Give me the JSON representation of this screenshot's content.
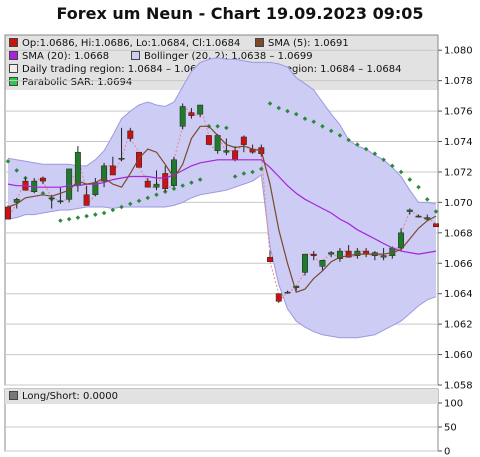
{
  "title": "Forex um Neun - Chart 19.09.2023 09:05",
  "legend": {
    "ohlc": "Op:1.0686, Hi:1.0686, Lo:1.0684, Cl:1.0684",
    "sma5": "SMA (5): 1.0691",
    "sma20": "SMA (20): 1.0668",
    "bollinger": "Bollinger (20, 2): 1.0638 – 1.0699",
    "daily_region": "Daily trading region: 1.0684 – 1.0684",
    "sl_region": "Daily S/L region: 1.0684 – 1.0684",
    "psar": "Parabolic SAR: 1.0694",
    "long_short": "Long/Short: 0.0000"
  },
  "colors": {
    "up_candle": "#1f7a2b",
    "down_candle": "#cc1111",
    "sma5": "#7a4a2a",
    "sma20": "#aa22dd",
    "bollinger_fill": "#ccccf5",
    "bollinger_edge": "#9a9ae0",
    "psar": "#2a8a3a",
    "sl_swatch": "#dd1111",
    "legend_bg": "#e2e2e2",
    "grid": "#c8c8c8"
  },
  "chart_data": [
    {
      "type": "candlestick",
      "ylim": [
        1.058,
        1.081
      ],
      "yticks": [
        "1.058",
        "1.060",
        "1.062",
        "1.064",
        "1.066",
        "1.068",
        "1.070",
        "1.072",
        "1.074",
        "1.076",
        "1.078",
        "1.080"
      ],
      "grid": true,
      "candles": [
        {
          "o": 1.0697,
          "h": 1.0698,
          "l": 1.069,
          "c": 1.0689
        },
        {
          "o": 1.07,
          "h": 1.0703,
          "l": 1.0696,
          "c": 1.0702
        },
        {
          "o": 1.0714,
          "h": 1.0716,
          "l": 1.0708,
          "c": 1.0708
        },
        {
          "o": 1.0707,
          "h": 1.0716,
          "l": 1.0706,
          "c": 1.0714
        },
        {
          "o": 1.0716,
          "h": 1.0717,
          "l": 1.0712,
          "c": 1.0714
        },
        {
          "o": 1.0703,
          "h": 1.0705,
          "l": 1.0696,
          "c": 1.0703
        },
        {
          "o": 1.0701,
          "h": 1.071,
          "l": 1.0699,
          "c": 1.0701
        },
        {
          "o": 1.0702,
          "h": 1.0722,
          "l": 1.07,
          "c": 1.0722
        },
        {
          "o": 1.0711,
          "h": 1.0737,
          "l": 1.0707,
          "c": 1.0733
        },
        {
          "o": 1.0705,
          "h": 1.0711,
          "l": 1.0698,
          "c": 1.0698
        },
        {
          "o": 1.0705,
          "h": 1.0716,
          "l": 1.0704,
          "c": 1.0713
        },
        {
          "o": 1.0714,
          "h": 1.0726,
          "l": 1.071,
          "c": 1.0724
        },
        {
          "o": 1.0724,
          "h": 1.073,
          "l": 1.0718,
          "c": 1.0718
        },
        {
          "o": 1.0729,
          "h": 1.0749,
          "l": 1.0727,
          "c": 1.0729
        },
        {
          "o": 1.0747,
          "h": 1.0749,
          "l": 1.074,
          "c": 1.0742
        },
        {
          "o": 1.0733,
          "h": 1.0733,
          "l": 1.0723,
          "c": 1.0723
        },
        {
          "o": 1.0714,
          "h": 1.0716,
          "l": 1.071,
          "c": 1.071
        },
        {
          "o": 1.071,
          "h": 1.0721,
          "l": 1.0708,
          "c": 1.0712
        },
        {
          "o": 1.0719,
          "h": 1.0724,
          "l": 1.0707,
          "c": 1.0709
        },
        {
          "o": 1.0711,
          "h": 1.073,
          "l": 1.071,
          "c": 1.0728
        },
        {
          "o": 1.075,
          "h": 1.0765,
          "l": 1.0748,
          "c": 1.0763
        },
        {
          "o": 1.0759,
          "h": 1.0762,
          "l": 1.0755,
          "c": 1.0757
        },
        {
          "o": 1.0758,
          "h": 1.0764,
          "l": 1.0756,
          "c": 1.0764
        },
        {
          "o": 1.0744,
          "h": 1.0744,
          "l": 1.0738,
          "c": 1.0738
        },
        {
          "o": 1.0734,
          "h": 1.0745,
          "l": 1.0732,
          "c": 1.0744
        },
        {
          "o": 1.0733,
          "h": 1.0742,
          "l": 1.0731,
          "c": 1.0734
        },
        {
          "o": 1.0734,
          "h": 1.0737,
          "l": 1.0727,
          "c": 1.0728
        },
        {
          "o": 1.0743,
          "h": 1.0744,
          "l": 1.0733,
          "c": 1.0738
        },
        {
          "o": 1.0735,
          "h": 1.0738,
          "l": 1.0732,
          "c": 1.0733
        },
        {
          "o": 1.0736,
          "h": 1.0738,
          "l": 1.073,
          "c": 1.0732
        },
        {
          "o": 1.0664,
          "h": 1.0668,
          "l": 1.0661,
          "c": 1.0661
        },
        {
          "o": 1.064,
          "h": 1.064,
          "l": 1.0634,
          "c": 1.0635
        },
        {
          "o": 1.0641,
          "h": 1.0642,
          "l": 1.064,
          "c": 1.0641
        },
        {
          "o": 1.0644,
          "h": 1.0645,
          "l": 1.0642,
          "c": 1.0645
        },
        {
          "o": 1.0654,
          "h": 1.0666,
          "l": 1.0652,
          "c": 1.0666
        },
        {
          "o": 1.0666,
          "h": 1.0668,
          "l": 1.0662,
          "c": 1.0665
        },
        {
          "o": 1.0658,
          "h": 1.0662,
          "l": 1.0655,
          "c": 1.0662
        },
        {
          "o": 1.0666,
          "h": 1.0668,
          "l": 1.0664,
          "c": 1.0667
        },
        {
          "o": 1.0663,
          "h": 1.067,
          "l": 1.0661,
          "c": 1.0668
        },
        {
          "o": 1.0668,
          "h": 1.0672,
          "l": 1.0664,
          "c": 1.0664
        },
        {
          "o": 1.0665,
          "h": 1.067,
          "l": 1.0663,
          "c": 1.0668
        },
        {
          "o": 1.0668,
          "h": 1.067,
          "l": 1.0664,
          "c": 1.0666
        },
        {
          "o": 1.0665,
          "h": 1.0668,
          "l": 1.0662,
          "c": 1.0667
        },
        {
          "o": 1.0664,
          "h": 1.067,
          "l": 1.0662,
          "c": 1.0665
        },
        {
          "o": 1.0665,
          "h": 1.0671,
          "l": 1.0663,
          "c": 1.067
        },
        {
          "o": 1.067,
          "h": 1.0683,
          "l": 1.0668,
          "c": 1.068
        },
        {
          "o": 1.0694,
          "h": 1.0696,
          "l": 1.0692,
          "c": 1.0695
        },
        {
          "o": 1.0691,
          "h": 1.0692,
          "l": 1.069,
          "c": 1.0691
        },
        {
          "o": 1.0689,
          "h": 1.0692,
          "l": 1.0688,
          "c": 1.069
        },
        {
          "o": 1.0686,
          "h": 1.0686,
          "l": 1.0684,
          "c": 1.0684
        }
      ],
      "sma5": [
        1.0697,
        1.0699,
        1.0703,
        1.0704,
        1.0705,
        1.0704,
        1.0706,
        1.0708,
        1.0714,
        1.0712,
        1.0713,
        1.0716,
        1.0712,
        1.071,
        1.0719,
        1.0729,
        1.0735,
        1.0733,
        1.0725,
        1.0716,
        1.0725,
        1.0742,
        1.075,
        1.075,
        1.0744,
        1.0738,
        1.0736,
        1.0737,
        1.0735,
        1.0734,
        1.0712,
        1.0682,
        1.066,
        1.0641,
        1.0643,
        1.065,
        1.0655,
        1.0661,
        1.0664,
        1.0665,
        1.0666,
        1.0666,
        1.0666,
        1.0666,
        1.0667,
        1.0669,
        1.0676,
        1.0683,
        1.0688,
        1.0691
      ],
      "sma20": [
        1.0712,
        1.0711,
        1.0711,
        1.071,
        1.071,
        1.071,
        1.071,
        1.0711,
        1.0711,
        1.0712,
        1.0712,
        1.0713,
        1.0715,
        1.0716,
        1.0717,
        1.0717,
        1.0717,
        1.0716,
        1.0716,
        1.0718,
        1.0721,
        1.0724,
        1.0726,
        1.0727,
        1.0728,
        1.0728,
        1.0728,
        1.0728,
        1.0728,
        1.0728,
        1.0723,
        1.0717,
        1.0711,
        1.0706,
        1.0702,
        1.0699,
        1.0696,
        1.0693,
        1.0689,
        1.0686,
        1.0682,
        1.0679,
        1.0676,
        1.0673,
        1.067,
        1.0668,
        1.0667,
        1.0666,
        1.0667,
        1.0668
      ],
      "bollinger_upper": [
        1.0729,
        1.0728,
        1.0727,
        1.0726,
        1.0725,
        1.0725,
        1.0725,
        1.0725,
        1.0724,
        1.0724,
        1.0728,
        1.0734,
        1.0744,
        1.0755,
        1.076,
        1.0764,
        1.0766,
        1.0764,
        1.0763,
        1.0766,
        1.0776,
        1.0786,
        1.0792,
        1.0794,
        1.0795,
        1.0794,
        1.0794,
        1.0793,
        1.0792,
        1.0792,
        1.0792,
        1.0791,
        1.0789,
        1.0782,
        1.0778,
        1.0774,
        1.0766,
        1.0758,
        1.0751,
        1.0741,
        1.0737,
        1.0735,
        1.0731,
        1.0728,
        1.0723,
        1.0717,
        1.0708,
        1.07,
        1.07,
        1.0699
      ],
      "bollinger_lower": [
        1.0689,
        1.069,
        1.0692,
        1.0692,
        1.0693,
        1.0694,
        1.0695,
        1.0695,
        1.0696,
        1.0697,
        1.0697,
        1.0697,
        1.0696,
        1.0697,
        1.0697,
        1.0697,
        1.0697,
        1.0697,
        1.0697,
        1.0698,
        1.07,
        1.0703,
        1.0705,
        1.0706,
        1.0707,
        1.0708,
        1.071,
        1.0712,
        1.0714,
        1.0718,
        1.0671,
        1.0646,
        1.063,
        1.0622,
        1.0618,
        1.0615,
        1.0613,
        1.0612,
        1.0611,
        1.0611,
        1.0611,
        1.0612,
        1.0613,
        1.0616,
        1.0619,
        1.0622,
        1.0627,
        1.0632,
        1.0636,
        1.0638
      ],
      "psar": [
        1.0727,
        1.0721,
        1.0716,
        1.0711,
        1.0706,
        1.0702,
        1.0688,
        1.0689,
        1.069,
        1.0691,
        1.0692,
        1.0693,
        1.0695,
        1.0697,
        1.0699,
        1.0701,
        1.0703,
        1.0705,
        1.0707,
        1.0709,
        1.0711,
        1.0713,
        1.0715,
        1.075,
        1.075,
        1.0749,
        1.0717,
        1.0719,
        1.072,
        1.0722,
        1.0765,
        1.0762,
        1.076,
        1.0758,
        1.0755,
        1.0753,
        1.075,
        1.0747,
        1.0744,
        1.0741,
        1.0738,
        1.0735,
        1.0732,
        1.0728,
        1.0724,
        1.072,
        1.0715,
        1.071,
        1.0702,
        1.0694
      ]
    },
    {
      "type": "line",
      "ylim": [
        0,
        100
      ],
      "yticks": [
        "0",
        "50",
        "100"
      ],
      "grid": true,
      "series": []
    }
  ]
}
